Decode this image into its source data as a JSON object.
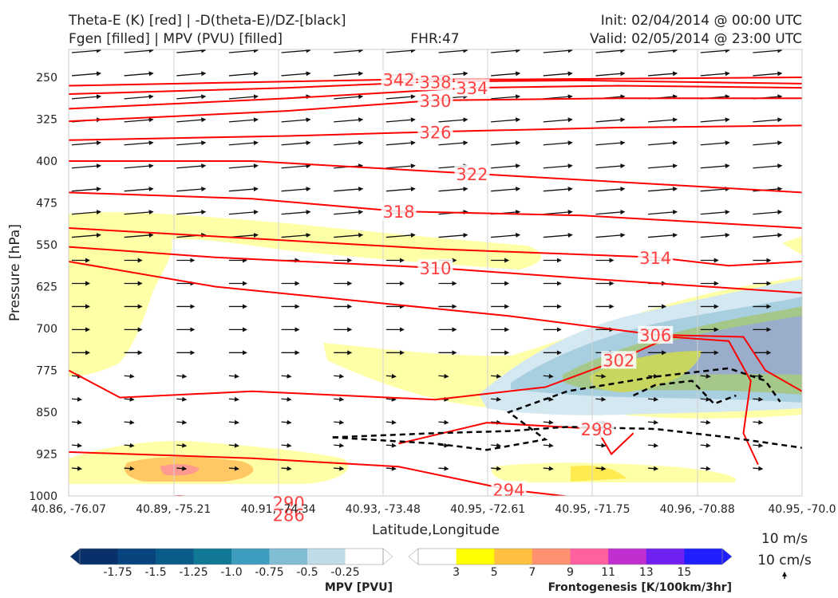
{
  "header": {
    "title_line1_left": "Theta-E (K) [red] | -D(theta-E)/DZ-[black]",
    "title_line2_left": "Fgen [filled] | MPV (PVU) [filled]",
    "fhr": "FHR:47",
    "init": "Init: 02/04/2014 @ 00:00 UTC",
    "valid": "Valid: 02/05/2014 @ 23:00 UTC"
  },
  "chart_data": {
    "type": "cross-section",
    "xlabel": "Latitude,Longitude",
    "ylabel": "Pressure [hPa]",
    "x_ticks": [
      "40.86, -76.07",
      "40.89, -75.21",
      "40.91, -74.34",
      "40.93, -73.48",
      "40.95, -72.61",
      "40.95, -71.75",
      "40.96, -70.88",
      "40.95, -70.0"
    ],
    "y_ticks": [
      250,
      325,
      400,
      475,
      550,
      625,
      700,
      775,
      850,
      925,
      1000
    ],
    "ylim": [
      1000,
      200
    ],
    "y_scale": "linear",
    "grid": true,
    "theta_e_contours": [
      {
        "label": "342",
        "color": "#ff0000",
        "points": [
          [
            0,
            0.4
          ],
          [
            0.3,
            0.2
          ],
          [
            0.45,
            0.1
          ],
          [
            0.6,
            0.1
          ],
          [
            1.0,
            0
          ]
        ]
      },
      {
        "label": "338",
        "color": "#ff0000",
        "points": [
          [
            0,
            0.8
          ],
          [
            0.3,
            0.5
          ],
          [
            0.5,
            0.2
          ],
          [
            0.7,
            0.15
          ],
          [
            1.0,
            0.3
          ]
        ]
      },
      {
        "label": "334",
        "color": "#ff0000",
        "points": [
          [
            0,
            1.5
          ],
          [
            0.3,
            1.0
          ],
          [
            0.55,
            0.5
          ],
          [
            0.75,
            0.4
          ],
          [
            1.0,
            0.5
          ]
        ]
      },
      {
        "label": "330",
        "color": "#ff0000",
        "points": [
          [
            0,
            2.1
          ],
          [
            0.3,
            1.6
          ],
          [
            0.5,
            1.1
          ],
          [
            0.75,
            1.0
          ],
          [
            1.0,
            1.0
          ]
        ]
      },
      {
        "label": "326",
        "color": "#ff0000",
        "points": [
          [
            0,
            3.0
          ],
          [
            0.3,
            2.8
          ],
          [
            0.5,
            2.6
          ],
          [
            0.75,
            2.4
          ],
          [
            1.0,
            2.3
          ]
        ]
      },
      {
        "label": "322",
        "color": "#ff0000",
        "points": [
          [
            0,
            4.0
          ],
          [
            0.25,
            4.0
          ],
          [
            0.55,
            4.6
          ],
          [
            0.75,
            5.0
          ],
          [
            1.0,
            5.5
          ]
        ]
      },
      {
        "label": "318",
        "color": "#ff0000",
        "points": [
          [
            0,
            5.5
          ],
          [
            0.25,
            5.8
          ],
          [
            0.45,
            6.4
          ],
          [
            0.7,
            6.6
          ],
          [
            1.0,
            7.2
          ]
        ]
      },
      {
        "label": "314",
        "color": "#ff0000",
        "points": [
          [
            0,
            7.2
          ],
          [
            0.2,
            7.6
          ],
          [
            0.5,
            8.2
          ],
          [
            0.8,
            8.6
          ],
          [
            0.9,
            9.0
          ],
          [
            1.0,
            8.8
          ]
        ]
      },
      {
        "label": "310",
        "color": "#ff0000",
        "points": [
          [
            0,
            8.1
          ],
          [
            0.2,
            8.6
          ],
          [
            0.5,
            9.1
          ],
          [
            0.7,
            9.6
          ],
          [
            1.0,
            10.3
          ]
        ]
      },
      {
        "label": "306",
        "color": "#ff0000",
        "points": [
          [
            0,
            8.8
          ],
          [
            0.2,
            10.0
          ],
          [
            0.4,
            10.7
          ],
          [
            0.6,
            11.4
          ],
          [
            0.8,
            12.3
          ],
          [
            0.92,
            12.4
          ],
          [
            0.95,
            14.0
          ],
          [
            1.0,
            15.0
          ]
        ]
      },
      {
        "label": "302",
        "color": "#ff0000",
        "points": [
          [
            0,
            14.0
          ],
          [
            0.07,
            15.3
          ],
          [
            0.25,
            15.0
          ],
          [
            0.5,
            15.4
          ],
          [
            0.65,
            14.8
          ],
          [
            0.75,
            13.5
          ],
          [
            0.82,
            12.4
          ],
          [
            0.9,
            12.6
          ],
          [
            0.93,
            14.5
          ],
          [
            0.92,
            17.0
          ],
          [
            0.94,
            18.5
          ]
        ]
      },
      {
        "label": "298",
        "color": "#ff0000",
        "points": [
          [
            0.45,
            17.5
          ],
          [
            0.57,
            16.5
          ],
          [
            0.72,
            16.8
          ],
          [
            0.74,
            18.0
          ],
          [
            0.77,
            17.0
          ]
        ]
      },
      {
        "label": "294",
        "color": "#ff0000",
        "points": [
          [
            0,
            17.9
          ],
          [
            0.25,
            18.2
          ],
          [
            0.45,
            18.6
          ],
          [
            0.6,
            19.7
          ],
          [
            0.75,
            20.3
          ],
          [
            1.0,
            20.9
          ]
        ]
      },
      {
        "label": "290",
        "color": "#ff0000",
        "points": [
          [
            0,
            20.5
          ],
          [
            0.15,
            20.0
          ],
          [
            0.3,
            20.3
          ],
          [
            0.45,
            21.0
          ],
          [
            0.6,
            21.9
          ]
        ]
      },
      {
        "label": "286",
        "color": "#ff0000",
        "points": [
          [
            0.17,
            21.8
          ],
          [
            0.2,
            21.0
          ],
          [
            0.3,
            20.9
          ],
          [
            0.4,
            21.2
          ],
          [
            0.44,
            21.9
          ]
        ]
      }
    ],
    "dthetae_dz_contours": [
      {
        "color": "#000000",
        "style": "dashed",
        "points": [
          [
            0.36,
            17.2
          ],
          [
            0.5,
            17.0
          ],
          [
            0.6,
            16.9
          ],
          [
            0.68,
            16.7
          ],
          [
            0.8,
            16.8
          ],
          [
            0.9,
            17.2
          ],
          [
            1.0,
            17.7
          ]
        ]
      },
      {
        "color": "#000000",
        "style": "dashed",
        "points": [
          [
            0.36,
            17.2
          ],
          [
            0.5,
            17.5
          ],
          [
            0.57,
            17.8
          ],
          [
            0.65,
            17.3
          ],
          [
            0.6,
            16.0
          ],
          [
            0.68,
            15.0
          ],
          [
            0.8,
            14.3
          ],
          [
            0.9,
            13.9
          ],
          [
            0.95,
            14.5
          ],
          [
            0.97,
            15.5
          ]
        ]
      },
      {
        "color": "#000000",
        "style": "dashed",
        "points": [
          [
            0.77,
            15.2
          ],
          [
            0.8,
            14.7
          ],
          [
            0.85,
            14.5
          ],
          [
            0.88,
            15.6
          ],
          [
            0.91,
            15.2
          ]
        ]
      }
    ],
    "mpv_colorbar": {
      "label": "MPV [PVU]",
      "ticks": [
        "-1.75",
        "-1.5",
        "-1.25",
        "-1.0",
        "-0.75",
        "-0.5",
        "-0.25"
      ],
      "colors": [
        "#08306b",
        "#08457e",
        "#0a5a8a",
        "#117896",
        "#3e9dbf",
        "#82bdd6",
        "#c0dbe8",
        "#ffffff"
      ]
    },
    "fgen_colorbar": {
      "label": "Frontogenesis [K/100km/3hr]",
      "ticks": [
        "3",
        "5",
        "7",
        "9",
        "11",
        "13",
        "15"
      ],
      "colors": [
        "#ffffff",
        "#ffff00",
        "#ffc040",
        "#ff9070",
        "#ff60a0",
        "#c030d0",
        "#7020f0",
        "#2020ff"
      ]
    },
    "vector_key": {
      "line1": "10 m/s",
      "line2": "10 cm/s"
    }
  }
}
